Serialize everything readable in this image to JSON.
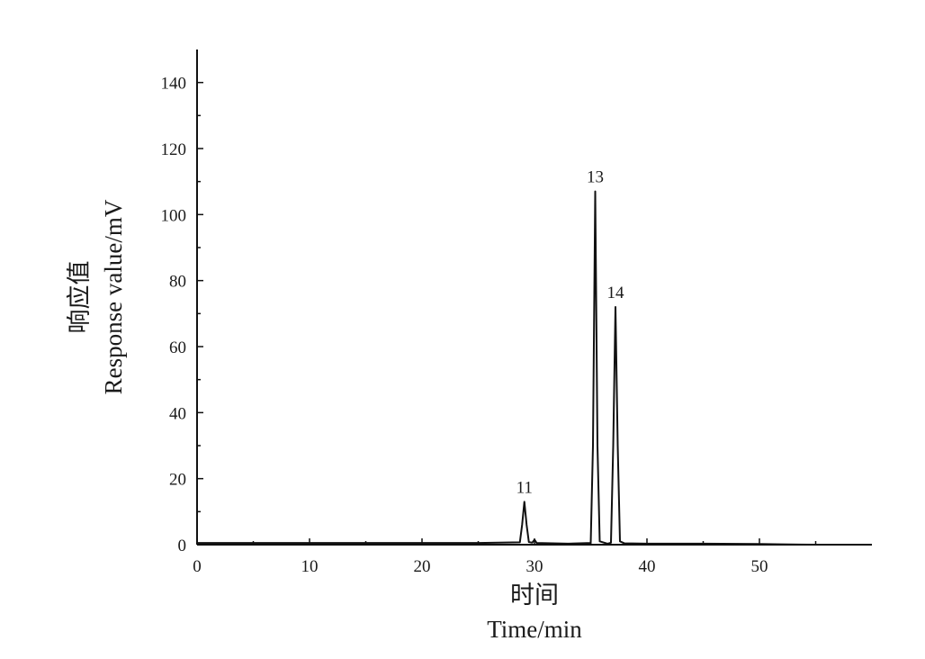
{
  "chart_data": {
    "type": "line",
    "title": "",
    "xlabel_cn": "时间",
    "xlabel_en": "Time/min",
    "ylabel_cn": "响应值",
    "ylabel_en": "Response value/mV",
    "xlim": [
      0,
      60
    ],
    "ylim": [
      0,
      150
    ],
    "x_ticks": [
      0,
      10,
      20,
      30,
      40,
      50
    ],
    "x_tick_labels": [
      "0",
      "10",
      "20",
      "30",
      "40",
      "50"
    ],
    "y_ticks": [
      0,
      20,
      40,
      60,
      80,
      100,
      120,
      140
    ],
    "y_tick_labels": [
      "0",
      "20",
      "40",
      "60",
      "80",
      "100",
      "120",
      "140"
    ],
    "grid": false,
    "line_color": "#111111",
    "peaks": [
      {
        "label": "11",
        "x": 29.1,
        "y": 13
      },
      {
        "label": "13",
        "x": 35.4,
        "y": 107
      },
      {
        "label": "14",
        "x": 37.2,
        "y": 72
      }
    ],
    "series": [
      {
        "x": [
          0,
          5,
          10,
          15,
          20,
          25,
          28.7,
          28.9,
          29.1,
          29.3,
          29.5,
          29.8,
          30.0,
          30.2,
          33,
          35.0,
          35.2,
          35.4,
          35.6,
          35.8,
          36.5,
          36.8,
          37.0,
          37.2,
          37.4,
          37.6,
          38.0,
          40,
          45,
          50,
          52,
          55,
          60
        ],
        "y": [
          0.5,
          0.5,
          0.5,
          0.5,
          0.5,
          0.5,
          0.7,
          6,
          13,
          6,
          0.8,
          0.6,
          1.5,
          0.5,
          0.3,
          0.5,
          30,
          107,
          30,
          1,
          0.3,
          0.6,
          30,
          72,
          30,
          1,
          0.4,
          0.3,
          0.3,
          0.2,
          0.1,
          0,
          0
        ]
      }
    ]
  }
}
